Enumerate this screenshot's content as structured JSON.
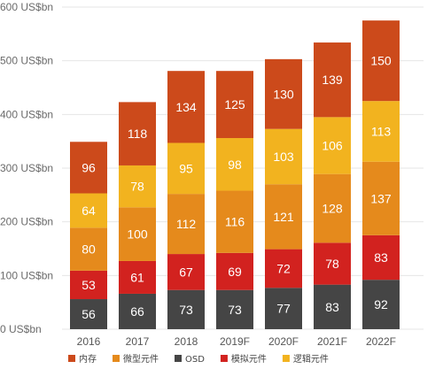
{
  "chart_data": {
    "type": "bar",
    "stacked": true,
    "categories": [
      "2016",
      "2017",
      "2018",
      "2019F",
      "2020F",
      "2021F",
      "2022F"
    ],
    "series": [
      {
        "name": "OSD",
        "color": "#454545",
        "values": [
          56,
          66,
          73,
          73,
          77,
          83,
          92
        ]
      },
      {
        "name": "模拟元件",
        "color": "#d2221f",
        "values": [
          53,
          61,
          67,
          69,
          72,
          78,
          83
        ]
      },
      {
        "name": "微型元件",
        "color": "#e58a1c",
        "values": [
          80,
          100,
          112,
          116,
          121,
          128,
          137
        ]
      },
      {
        "name": "逻辑元件",
        "color": "#f2b31f",
        "values": [
          64,
          78,
          95,
          98,
          103,
          106,
          113
        ]
      },
      {
        "name": "内存",
        "color": "#cc4a1b",
        "values": [
          96,
          118,
          134,
          125,
          130,
          139,
          150
        ]
      }
    ],
    "legend_order": [
      "内存",
      "微型元件",
      "OSD",
      "模拟元件",
      "逻辑元件"
    ],
    "ylim": [
      0,
      600
    ],
    "yticks": [
      {
        "value": 0,
        "label": "0 US$bn"
      },
      {
        "value": 100,
        "label": "100 US$bn"
      },
      {
        "value": 200,
        "label": "200 US$bn"
      },
      {
        "value": 300,
        "label": "300 US$bn"
      },
      {
        "value": 400,
        "label": "400 US$bn"
      },
      {
        "value": 500,
        "label": "500 US$bn"
      },
      {
        "value": 600,
        "label": "600 US$bn"
      }
    ],
    "grid": true,
    "legend_position": "bottom",
    "title": "",
    "xlabel": "",
    "ylabel": ""
  }
}
